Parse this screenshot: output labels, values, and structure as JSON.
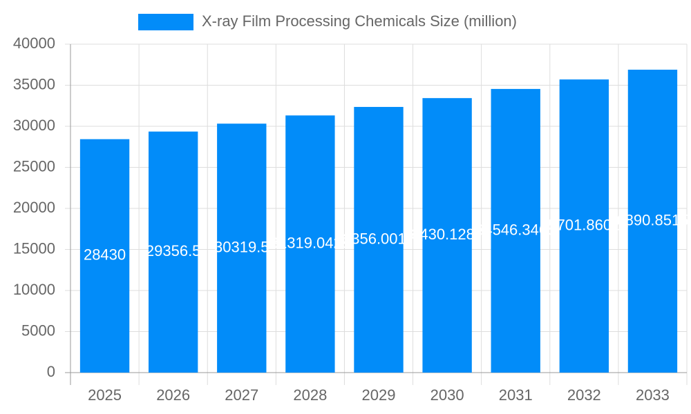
{
  "chart_data": {
    "type": "bar",
    "title": "X-ray Film Processing Chemicals Size (million)",
    "categories": [
      "2025",
      "2026",
      "2027",
      "2028",
      "2029",
      "2030",
      "2031",
      "2032",
      "2033"
    ],
    "values": [
      28430,
      29356.5,
      30319.5,
      31319.0425,
      32356.00175,
      33430.12875,
      34546.3465,
      35701.86025,
      36890.85156
    ],
    "color": "#028cf9",
    "ylim": [
      0,
      40000
    ],
    "yticks": [
      0,
      5000,
      10000,
      15000,
      20000,
      25000,
      30000,
      35000,
      40000
    ],
    "grid": true
  }
}
